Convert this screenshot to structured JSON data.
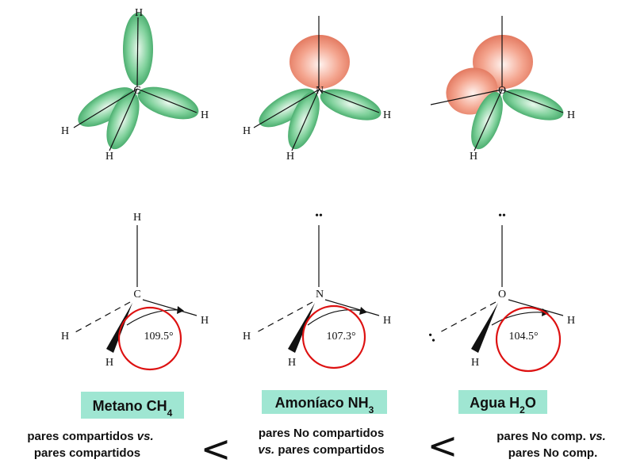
{
  "molecules": [
    {
      "name_prefix": "Metano CH",
      "name_sub": "4",
      "name_suffix": "",
      "orbital_center": "C",
      "orbital_h": [
        "H",
        "H",
        "H",
        "H"
      ],
      "struct_center": "C",
      "struct_h": [
        "H",
        "H",
        "H",
        "H"
      ],
      "angle": "109.5°",
      "comparison": [
        "pares compartidos ",
        "vs.",
        "pares compartidos"
      ]
    },
    {
      "name_prefix": "Amoníaco NH",
      "name_sub": "3",
      "name_suffix": "",
      "orbital_center": "N",
      "orbital_h": [
        "H",
        "H",
        "H"
      ],
      "struct_center": "N",
      "struct_h": [
        "H",
        "H",
        "H"
      ],
      "lone_pair": "••",
      "angle": "107.3°",
      "comparison": [
        "pares No compartidos",
        "vs.",
        " pares compartidos"
      ]
    },
    {
      "name_prefix": "Agua H",
      "name_sub": "2",
      "name_suffix": "O",
      "orbital_center": "O",
      "orbital_h": [
        "H",
        "H"
      ],
      "struct_center": "O",
      "struct_h": [
        "H",
        "H"
      ],
      "lone_pair": "••",
      "lone_pair_side": "• •",
      "angle": "104.5°",
      "comparison": [
        "pares No comp. ",
        "vs.",
        "pares No comp."
      ]
    }
  ],
  "comparators": [
    "<",
    "<"
  ],
  "colors": {
    "bond_orbital": "#3aa865",
    "lone_orbital": "#e8836c",
    "highlight_circle": "#dd1111",
    "name_box": "#9fe6d2"
  }
}
